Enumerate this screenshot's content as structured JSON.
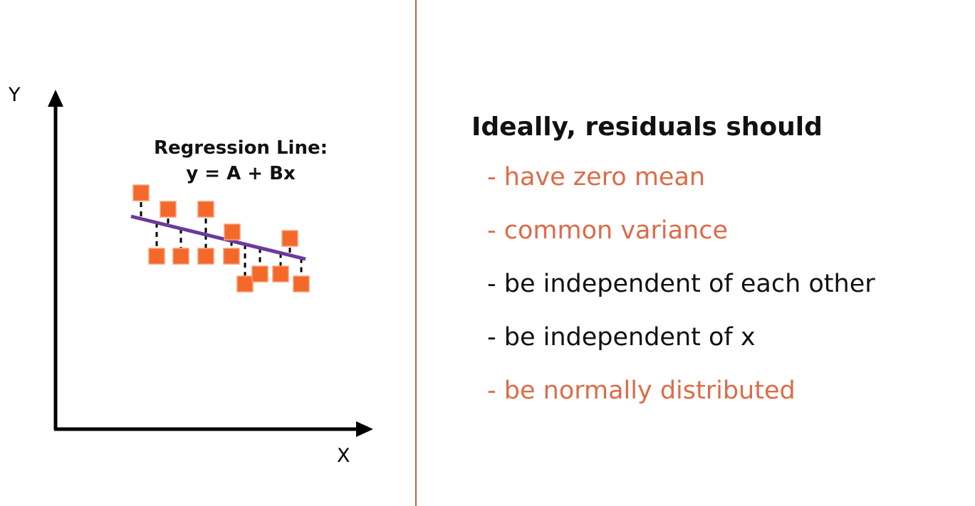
{
  "diagram": {
    "y_axis_label": "Y",
    "x_axis_label": "X",
    "regression_label_line1": "Regression Line:",
    "regression_label_line2": "y = A + Bx"
  },
  "panel": {
    "heading": "Ideally, residuals should",
    "items": [
      {
        "text": "- have zero mean",
        "color": "#de6b48"
      },
      {
        "text": "- common variance",
        "color": "#de6b48"
      },
      {
        "text": "- be independent of each other",
        "color": "#111111"
      },
      {
        "text": "- be independent of x",
        "color": "#111111"
      },
      {
        "text": "- be normally distributed",
        "color": "#de6b48"
      }
    ]
  },
  "colors": {
    "point_fill": "#f4692a",
    "point_stroke": "#f8a07a",
    "regression_line": "#6b3a9c",
    "axis": "#000000",
    "divider": "#b5634a",
    "accent_text": "#de6b48"
  }
}
